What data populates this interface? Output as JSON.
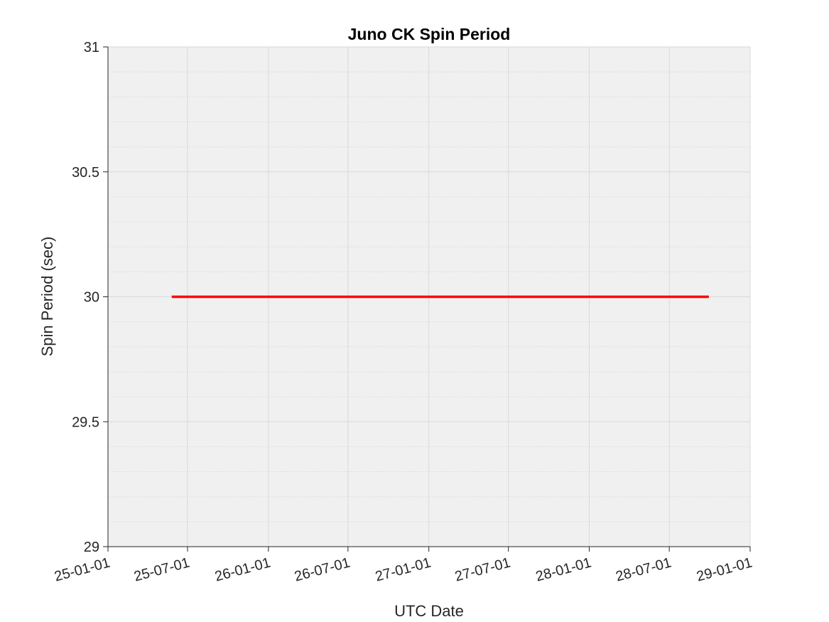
{
  "chart_data": {
    "type": "line",
    "title": "Juno CK Spin Period",
    "x_label": "UTC Date",
    "y_label": "Spin Period (sec)",
    "x": [
      "25-05-26",
      "28-09-29"
    ],
    "series": [
      {
        "color": "#ff0000",
        "values": [
          30,
          30
        ]
      }
    ],
    "xlim": [
      "25-01-01",
      "29-01-01"
    ],
    "xticks": [
      "25-01-01",
      "25-07-01",
      "26-01-01",
      "26-07-01",
      "27-01-01",
      "27-07-01",
      "28-01-01",
      "28-07-01",
      "29-01-01"
    ],
    "ylim": [
      29,
      31
    ],
    "yticks": [
      29,
      29.5,
      30,
      30.5,
      31
    ],
    "yminorticks": [
      29.1,
      29.2,
      29.3,
      29.4,
      29.6,
      29.7,
      29.8,
      29.9,
      30.1,
      30.2,
      30.3,
      30.4,
      30.6,
      30.7,
      30.8,
      30.9
    ],
    "grid": true,
    "minor_grid": true
  }
}
